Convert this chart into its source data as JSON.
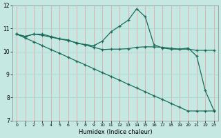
{
  "xlabel": "Humidex (Indice chaleur)",
  "xlim": [
    -0.5,
    23.5
  ],
  "ylim": [
    7,
    12
  ],
  "yticks": [
    7,
    8,
    9,
    10,
    11,
    12
  ],
  "xticks": [
    0,
    1,
    2,
    3,
    4,
    5,
    6,
    7,
    8,
    9,
    10,
    11,
    12,
    13,
    14,
    15,
    16,
    17,
    18,
    19,
    20,
    21,
    22,
    23
  ],
  "bg_color": "#c5e8e2",
  "line_color": "#1a6b5a",
  "grid_color_v": "#e8a8a8",
  "grid_color_h": "#a8d8d0",
  "series1_x": [
    0,
    1,
    2,
    3,
    4,
    5,
    6,
    7,
    8,
    9,
    10,
    11,
    12,
    13,
    14,
    15,
    16,
    17,
    18,
    19,
    20,
    21,
    22,
    23
  ],
  "series1_y": [
    10.75,
    10.65,
    10.75,
    10.75,
    10.65,
    10.55,
    10.5,
    10.35,
    10.3,
    10.25,
    10.45,
    10.85,
    11.1,
    11.35,
    11.85,
    11.5,
    10.3,
    10.15,
    10.1,
    10.1,
    10.15,
    9.8,
    8.3,
    7.45
  ],
  "series2_x": [
    0,
    1,
    2,
    3,
    4,
    5,
    6,
    7,
    8,
    9,
    10,
    11,
    12,
    13,
    14,
    15,
    16,
    17,
    18,
    19,
    20,
    21,
    22,
    23
  ],
  "series2_y": [
    10.75,
    10.65,
    10.75,
    10.7,
    10.62,
    10.54,
    10.47,
    10.38,
    10.28,
    10.18,
    10.08,
    10.1,
    10.1,
    10.12,
    10.18,
    10.2,
    10.2,
    10.18,
    10.14,
    10.1,
    10.1,
    10.05,
    10.05,
    10.05
  ],
  "series3_x": [
    0,
    1,
    2,
    3,
    4,
    5,
    6,
    7,
    8,
    9,
    10,
    11,
    12,
    13,
    14,
    15,
    16,
    17,
    18,
    19,
    20,
    21,
    22,
    23
  ],
  "series3_y": [
    10.75,
    10.58,
    10.42,
    10.25,
    10.08,
    9.92,
    9.75,
    9.58,
    9.42,
    9.25,
    9.08,
    8.92,
    8.75,
    8.58,
    8.42,
    8.25,
    8.08,
    7.92,
    7.75,
    7.58,
    7.42,
    7.42,
    7.42,
    7.42
  ]
}
